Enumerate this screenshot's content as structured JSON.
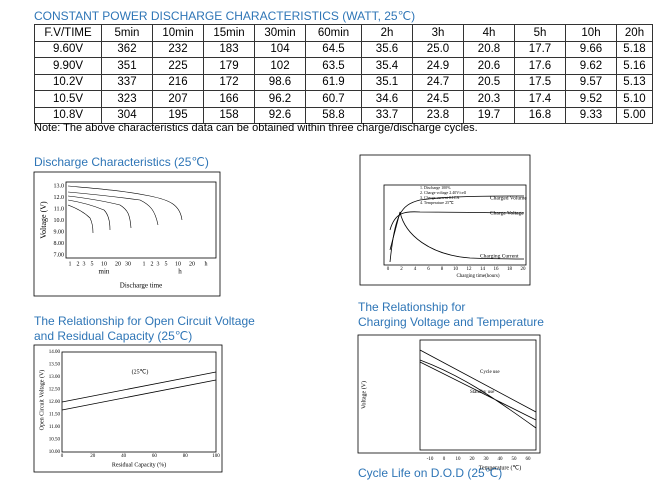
{
  "header": {
    "title": "CONSTANT POWER DISCHARGE CHARACTERISTICS (WATT, 25℃)"
  },
  "table": {
    "header": [
      "F.V/TIME",
      "5min",
      "10min",
      "15min",
      "30min",
      "60min",
      "2h",
      "3h",
      "4h",
      "5h",
      "10h",
      "20h"
    ],
    "rows": [
      [
        "9.60V",
        "362",
        "232",
        "183",
        "104",
        "64.5",
        "35.6",
        "25.0",
        "20.8",
        "17.7",
        "9.66",
        "5.18"
      ],
      [
        "9.90V",
        "351",
        "225",
        "179",
        "102",
        "63.5",
        "35.4",
        "24.9",
        "20.6",
        "17.6",
        "9.62",
        "5.16"
      ],
      [
        "10.2V",
        "337",
        "216",
        "172",
        "98.6",
        "61.9",
        "35.1",
        "24.7",
        "20.5",
        "17.5",
        "9.57",
        "5.13"
      ],
      [
        "10.5V",
        "323",
        "207",
        "166",
        "96.2",
        "60.7",
        "34.6",
        "24.5",
        "20.3",
        "17.4",
        "9.52",
        "5.10"
      ],
      [
        "10.8V",
        "304",
        "195",
        "158",
        "92.6",
        "58.8",
        "33.7",
        "23.8",
        "19.7",
        "16.8",
        "9.33",
        "5.00"
      ]
    ]
  },
  "note": "Note: The above characteristics data can be obtained within three charge/discharge cycles.",
  "discharge": {
    "title": "Discharge Characteristics (25℃)",
    "ylabel": "Voltage (V)",
    "yticks": [
      "13.0",
      "12.0",
      "11.0",
      "10.0",
      "9.00",
      "8.00",
      "7.00"
    ],
    "xticks": [
      "1",
      "2",
      "3",
      "5",
      "10",
      "20",
      "30",
      "1",
      "2",
      "3",
      "5",
      "10",
      "20",
      "h"
    ],
    "unit_min": "min",
    "unit_h": "h",
    "xlabel": "Discharge time"
  },
  "charging": {
    "legend": [
      "1. Discharge 100%",
      "2. Charge voltage 2.40V/cell",
      "3. Charge current 0.1CA",
      "4. Temperature 25℃"
    ],
    "charged_volume": "Charged Volume",
    "charge_voltage": "Charge Voltage",
    "charging_current": "Charging Current",
    "xlabel": "Charging time(hours)",
    "xticks": [
      "0",
      "2",
      "4",
      "6",
      "8",
      "10",
      "12",
      "14",
      "16",
      "18",
      "20"
    ]
  },
  "ocv": {
    "title_1": "The Relationship for Open Circuit Voltage",
    "title_2": "and Residual Capacity (25℃)",
    "ylabel": "Open Circuit Voltage (V)",
    "xlabel": "Residual Capacity (%)",
    "annotation": "(25℃)",
    "yticks": [
      "14.00",
      "13.50",
      "13.00",
      "12.50",
      "12.00",
      "11.50",
      "11.00",
      "10.50",
      "10.00"
    ],
    "xticks": [
      "0",
      "20",
      "40",
      "60",
      "80",
      "100"
    ]
  },
  "cvt": {
    "title_1": "The Relationship for",
    "title_2": "Charging Voltage and Temperature",
    "ylabel": "Voltage (V)",
    "xlabel": "Temperature (℃)",
    "cycle": "Cycle use",
    "standby": "Standby use",
    "xticks": [
      "-10",
      "0",
      "10",
      "20",
      "30",
      "40",
      "50",
      "60"
    ]
  },
  "cycle": {
    "title": "Cycle Life on D.O.D (25℃)"
  }
}
